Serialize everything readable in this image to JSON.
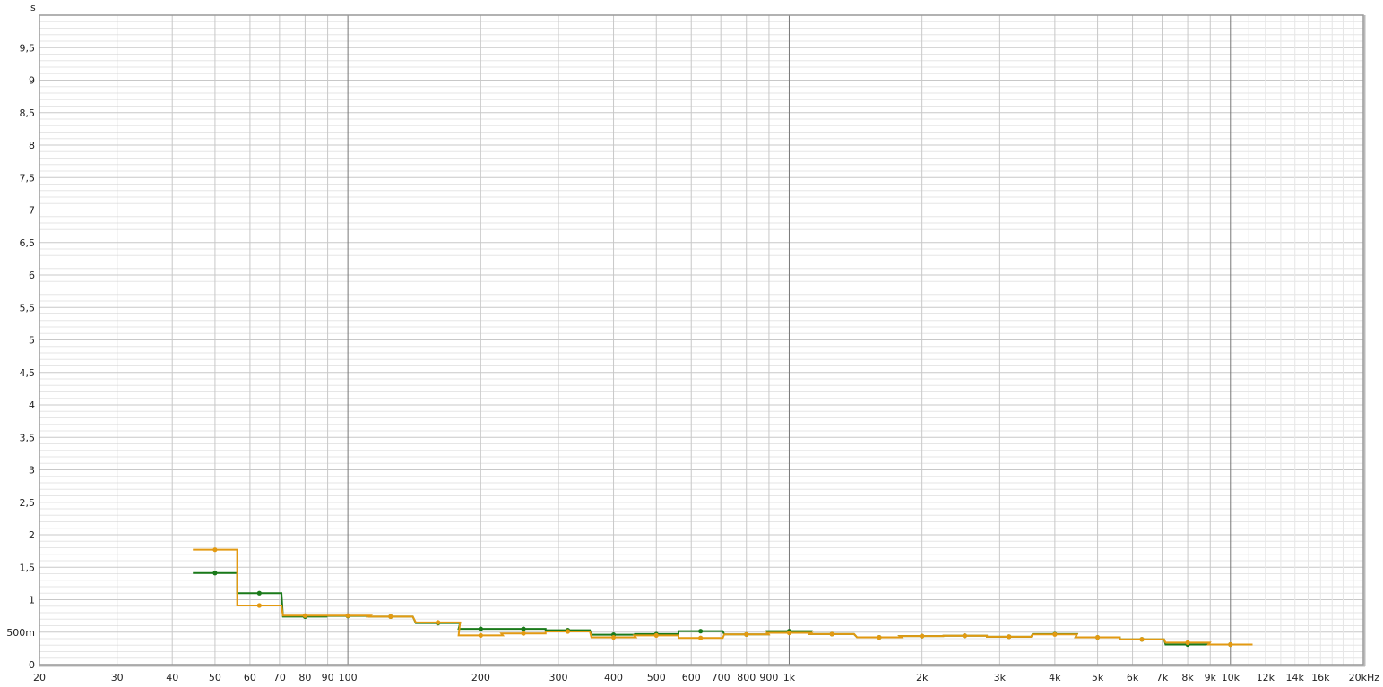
{
  "chart_data": {
    "type": "line",
    "step": true,
    "xscale": "log",
    "xlim": [
      20,
      20000
    ],
    "ylim": [
      0,
      10
    ],
    "ylabel": "s",
    "grid": true,
    "x_ticks": [
      {
        "v": 20,
        "t": "20"
      },
      {
        "v": 30,
        "t": "30"
      },
      {
        "v": 40,
        "t": "40"
      },
      {
        "v": 50,
        "t": "50"
      },
      {
        "v": 60,
        "t": "60"
      },
      {
        "v": 70,
        "t": "70"
      },
      {
        "v": 80,
        "t": "80"
      },
      {
        "v": 90,
        "t": "90"
      },
      {
        "v": 100,
        "t": "100"
      },
      {
        "v": 200,
        "t": "200"
      },
      {
        "v": 300,
        "t": "300"
      },
      {
        "v": 400,
        "t": "400"
      },
      {
        "v": 500,
        "t": "500"
      },
      {
        "v": 600,
        "t": "600"
      },
      {
        "v": 700,
        "t": "700"
      },
      {
        "v": 800,
        "t": "800"
      },
      {
        "v": 900,
        "t": "900"
      },
      {
        "v": 1000,
        "t": "1k"
      },
      {
        "v": 2000,
        "t": "2k"
      },
      {
        "v": 3000,
        "t": "3k"
      },
      {
        "v": 4000,
        "t": "4k"
      },
      {
        "v": 5000,
        "t": "5k"
      },
      {
        "v": 6000,
        "t": "6k"
      },
      {
        "v": 7000,
        "t": "7k"
      },
      {
        "v": 8000,
        "t": "8k"
      },
      {
        "v": 9000,
        "t": "9k"
      },
      {
        "v": 10000,
        "t": "10k"
      },
      {
        "v": 12000,
        "t": "12k",
        "muted": true
      },
      {
        "v": 14000,
        "t": "14k",
        "muted": true
      },
      {
        "v": 16000,
        "t": "16k",
        "muted": true
      },
      {
        "v": 20000,
        "t": "20kHz"
      }
    ],
    "y_ticks": [
      {
        "v": 0,
        "t": "0"
      },
      {
        "v": 0.5,
        "t": "500m"
      },
      {
        "v": 1,
        "t": "1"
      },
      {
        "v": 1.5,
        "t": "1,5"
      },
      {
        "v": 2,
        "t": "2"
      },
      {
        "v": 2.5,
        "t": "2,5"
      },
      {
        "v": 3,
        "t": "3"
      },
      {
        "v": 3.5,
        "t": "3,5"
      },
      {
        "v": 4,
        "t": "4"
      },
      {
        "v": 4.5,
        "t": "4,5"
      },
      {
        "v": 5,
        "t": "5"
      },
      {
        "v": 5.5,
        "t": "5,5"
      },
      {
        "v": 6,
        "t": "6"
      },
      {
        "v": 6.5,
        "t": "6,5"
      },
      {
        "v": 7,
        "t": "7"
      },
      {
        "v": 7.5,
        "t": "7,5"
      },
      {
        "v": 8,
        "t": "8"
      },
      {
        "v": 8.5,
        "t": "8,5"
      },
      {
        "v": 9,
        "t": "9"
      },
      {
        "v": 9.5,
        "t": "9,5"
      }
    ],
    "x": [
      50,
      63,
      80,
      100,
      125,
      160,
      200,
      250,
      315,
      400,
      500,
      630,
      800,
      1000,
      1250,
      1600,
      2000,
      2500,
      3150,
      4000,
      5000,
      6300,
      8000,
      10000
    ],
    "series": [
      {
        "color": "#1a7a1a",
        "values": [
          1.41,
          1.1,
          0.74,
          0.75,
          0.74,
          0.64,
          0.55,
          0.55,
          0.53,
          0.46,
          0.47,
          0.515,
          0.465,
          0.515,
          0.47,
          0.42,
          0.44,
          0.445,
          0.43,
          0.47,
          0.42,
          0.39,
          0.31,
          0.31
        ]
      },
      {
        "color": "#e39a12",
        "values": [
          1.77,
          0.91,
          0.755,
          0.755,
          0.74,
          0.65,
          0.45,
          0.48,
          0.51,
          0.42,
          0.45,
          0.41,
          0.465,
          0.49,
          0.47,
          0.42,
          0.44,
          0.445,
          0.43,
          0.465,
          0.42,
          0.39,
          0.34,
          0.31
        ]
      }
    ]
  }
}
